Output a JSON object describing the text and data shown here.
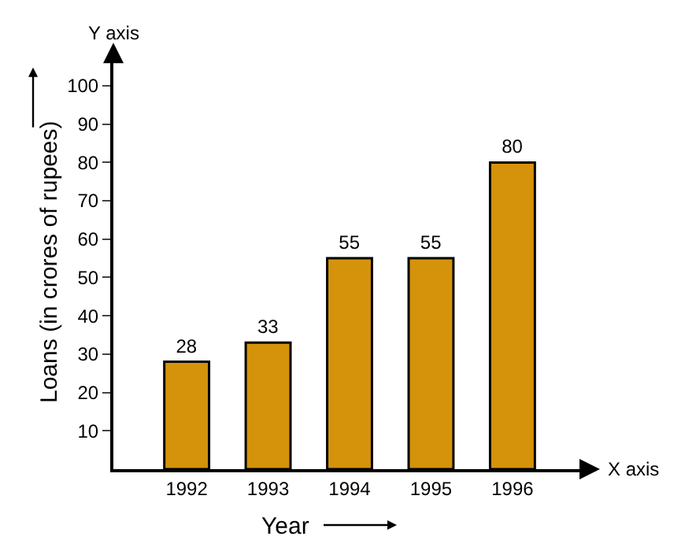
{
  "chart_data": {
    "type": "bar",
    "xlabel": "Year",
    "ylabel": "Loans (in crores of rupees)",
    "categories": [
      "1992",
      "1993",
      "1994",
      "1995",
      "1996"
    ],
    "values": [
      28,
      33,
      55,
      55,
      80
    ],
    "color": "#d4930a",
    "ylim": [
      0,
      108
    ],
    "yticks": [
      10,
      20,
      30,
      40,
      50,
      60,
      70,
      80,
      90,
      100
    ],
    "data_labels": true,
    "annotations": [
      "Y axis",
      "X axis"
    ]
  }
}
